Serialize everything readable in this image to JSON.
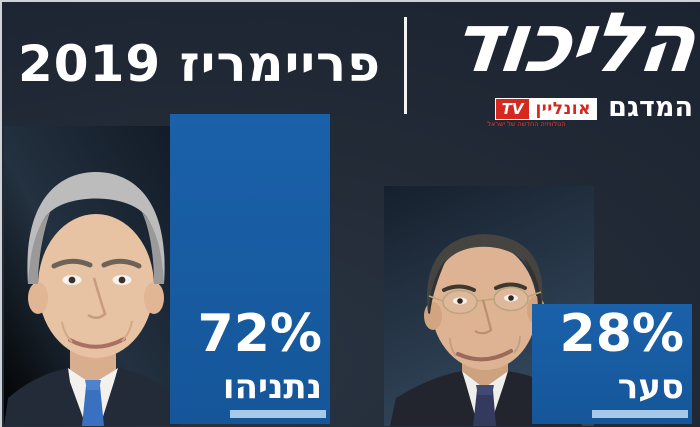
{
  "header": {
    "title": "פריימריז 2019",
    "likud_logo": "הליכוד",
    "sample_label": "המדגם",
    "channel": {
      "online_text": "אונליין",
      "tv_text": "TV",
      "tagline": "הטלוויזיה החדשה של ישראל"
    }
  },
  "chart_data": {
    "type": "bar",
    "title": "הליכוד פריימריז 2019 — המדגם",
    "categories": [
      "נתניהו",
      "סער"
    ],
    "values": [
      72,
      28
    ],
    "data_labels": [
      "72%",
      "28%"
    ],
    "unit": "%",
    "ylim": [
      0,
      100
    ],
    "grid": false,
    "legend": false,
    "orientation": "vertical",
    "bar_color": "#17599f",
    "underline_color": "#a6c9e8"
  },
  "bars": [
    {
      "pct": "72%",
      "name": "נתניהו",
      "value": 72
    },
    {
      "pct": "28%",
      "name": "סער",
      "value": 28
    }
  ],
  "colors": {
    "background": "#222a36",
    "bar_blue": "#17599f",
    "underline_blue": "#a6c9e8",
    "logo_red": "#d6281e",
    "text_white": "#ffffff"
  }
}
